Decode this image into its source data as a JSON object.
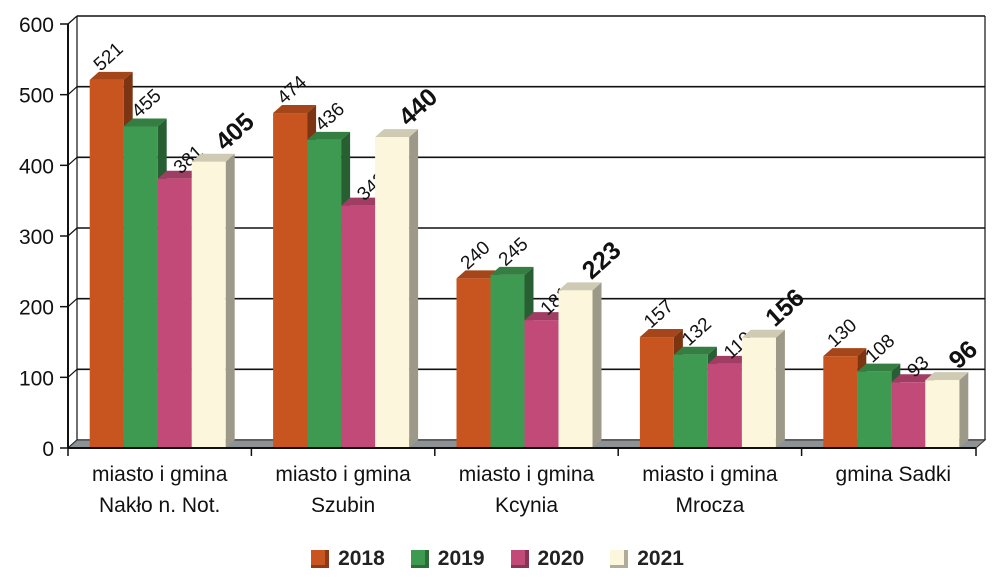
{
  "chart_data": {
    "type": "bar",
    "categories": [
      [
        "miasto i gmina",
        "Nakło n. Not."
      ],
      [
        "miasto i gmina",
        "Szubin"
      ],
      [
        "miasto i gmina",
        "Kcynia"
      ],
      [
        "miasto i gmina",
        "Mrocza"
      ],
      [
        "gmina Sadki"
      ]
    ],
    "series": [
      {
        "name": "2018",
        "values": [
          521,
          474,
          240,
          157,
          130
        ],
        "color": "#c8551f"
      },
      {
        "name": "2019",
        "values": [
          455,
          436,
          245,
          132,
          108
        ],
        "color": "#3f9a51"
      },
      {
        "name": "2020",
        "values": [
          381,
          343,
          181,
          119,
          93
        ],
        "color": "#c24a78"
      },
      {
        "name": "2021",
        "values": [
          405,
          440,
          223,
          156,
          96
        ],
        "color": "#fbf6dc"
      }
    ],
    "ylim": [
      0,
      600
    ],
    "yticks": [
      "0",
      "100",
      "200",
      "300",
      "400",
      "500",
      "600"
    ],
    "grid": true,
    "legend_position": "bottom",
    "bold_series": "2021"
  }
}
